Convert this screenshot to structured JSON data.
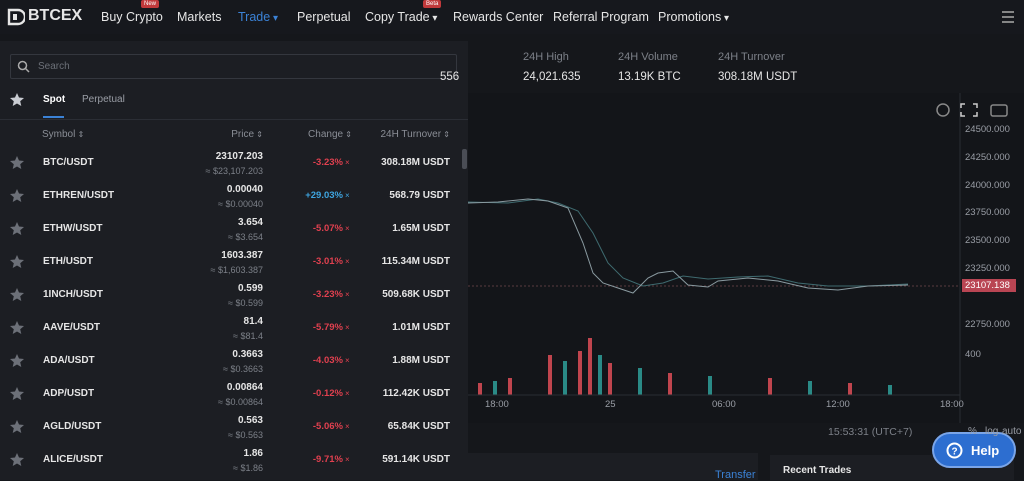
{
  "nav": {
    "logo": "BTCEX",
    "items": [
      {
        "label": "Buy Crypto",
        "badge": "New"
      },
      {
        "label": "Markets"
      },
      {
        "label": "Trade"
      },
      {
        "label": "Perpetual"
      },
      {
        "label": "Copy Trade",
        "badge": "Beta"
      },
      {
        "label": "Rewards Center"
      },
      {
        "label": "Referral Program"
      },
      {
        "label": "Promotions"
      }
    ]
  },
  "stats": [
    {
      "label": "",
      "value": "556"
    },
    {
      "label": "24H High",
      "value": "24,021.635"
    },
    {
      "label": "24H Volume",
      "value": "13.19K BTC"
    },
    {
      "label": "24H Turnover",
      "value": "308.18M USDT"
    }
  ],
  "market": {
    "search_placeholder": "Search",
    "tabs": [
      "Spot",
      "Perpetual"
    ],
    "headers": [
      "Symbol",
      "Price",
      "Change",
      "24H Turnover"
    ],
    "rows": [
      [
        "BTC/USDT",
        "23107.203",
        "≈ $23,107.203",
        "-3.23%",
        "308.18M USDT"
      ],
      [
        "ETHREN/USDT",
        "0.00040",
        "≈ $0.00040",
        "+29.03%",
        "568.79 USDT"
      ],
      [
        "ETHW/USDT",
        "3.654",
        "≈ $3.654",
        "-5.07%",
        "1.65M USDT"
      ],
      [
        "ETH/USDT",
        "1603.387",
        "≈ $1,603.387",
        "-3.01%",
        "115.34M USDT"
      ],
      [
        "1INCH/USDT",
        "0.599",
        "≈ $0.599",
        "-3.23%",
        "509.68K USDT"
      ],
      [
        "AAVE/USDT",
        "81.4",
        "≈ $81.4",
        "-5.79%",
        "1.01M USDT"
      ],
      [
        "ADA/USDT",
        "0.3663",
        "≈ $0.3663",
        "-4.03%",
        "1.88M USDT"
      ],
      [
        "ADP/USDT",
        "0.00864",
        "≈ $0.00864",
        "-0.12%",
        "112.42K USDT"
      ],
      [
        "AGLD/USDT",
        "0.563",
        "≈ $0.563",
        "-5.06%",
        "65.84K USDT"
      ],
      [
        "ALICE/USDT",
        "1.86",
        "≈ $1.86",
        "-9.71%",
        "591.14K USDT"
      ]
    ]
  },
  "chart": {
    "y_labels": [
      "24500.000",
      "24250.000",
      "24000.000",
      "23750.000",
      "23500.000",
      "23250.000",
      "22750.000",
      "400"
    ],
    "price_label": "23107.138",
    "x_labels": [
      "18:00",
      "25",
      "06:00",
      "12:00",
      "18:00"
    ],
    "time": "15:53:31 (UTC+7)",
    "options": [
      "%",
      "log",
      "auto"
    ]
  },
  "bottom": {
    "transfer": "Transfer",
    "recent_trades": "Recent Trades",
    "help": "Help"
  }
}
